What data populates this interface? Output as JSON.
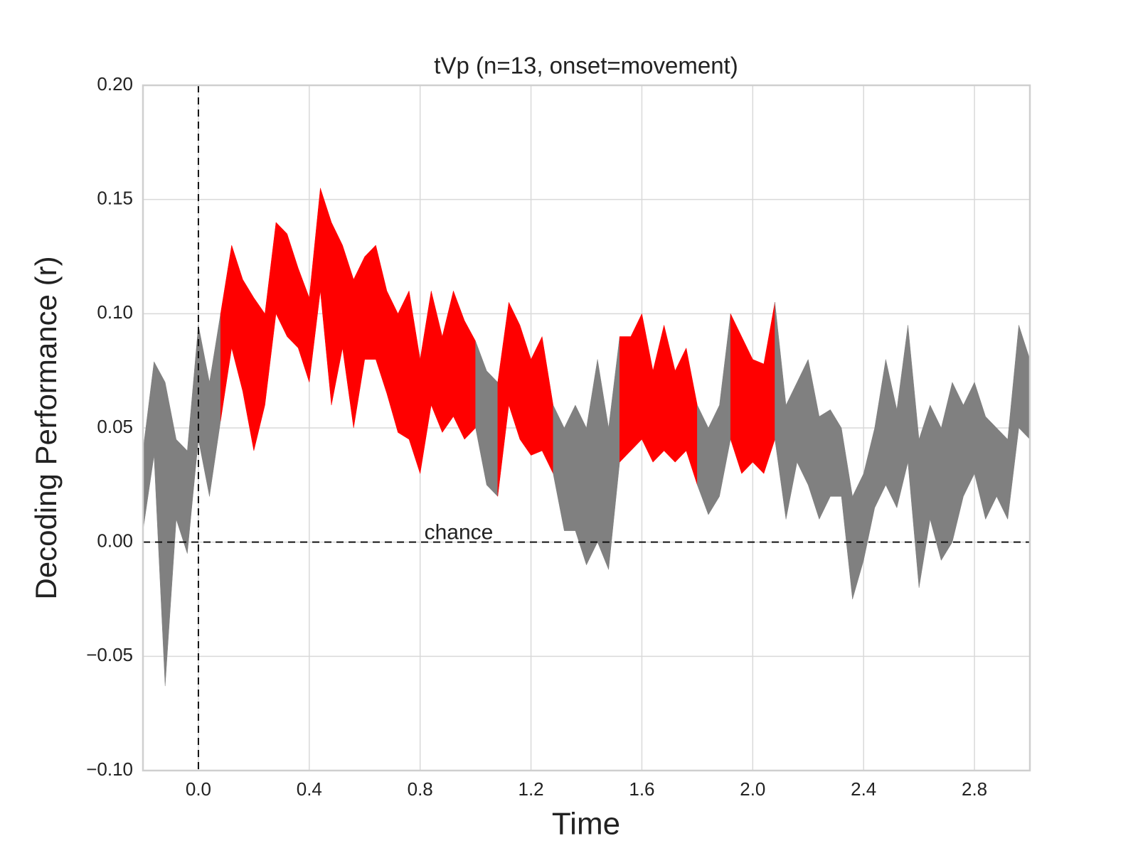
{
  "chart_data": {
    "type": "band",
    "title": "tVp (n=13, onset=movement)",
    "x_label": "Time",
    "y_label": "Decoding Performance (r)",
    "x": [
      -0.2,
      -0.16,
      -0.12,
      -0.08,
      -0.04,
      0.0,
      0.04,
      0.08,
      0.12,
      0.16,
      0.2,
      0.24,
      0.28,
      0.32,
      0.36,
      0.4,
      0.44,
      0.48,
      0.52,
      0.56,
      0.6,
      0.64,
      0.68,
      0.72,
      0.76,
      0.8,
      0.84,
      0.88,
      0.92,
      0.96,
      1.0,
      1.04,
      1.08,
      1.12,
      1.16,
      1.2,
      1.24,
      1.28,
      1.32,
      1.36,
      1.4,
      1.44,
      1.48,
      1.52,
      1.56,
      1.6,
      1.64,
      1.68,
      1.72,
      1.76,
      1.8,
      1.84,
      1.88,
      1.92,
      1.96,
      2.0,
      2.04,
      2.08,
      2.12,
      2.16,
      2.2,
      2.24,
      2.28,
      2.32,
      2.36,
      2.4,
      2.44,
      2.48,
      2.52,
      2.56,
      2.6,
      2.64,
      2.68,
      2.72,
      2.76,
      2.8,
      2.84,
      2.88,
      2.92,
      2.96,
      3.0
    ],
    "upper": [
      0.04,
      0.079,
      0.07,
      0.045,
      0.04,
      0.095,
      0.07,
      0.1,
      0.13,
      0.115,
      0.107,
      0.1,
      0.14,
      0.135,
      0.12,
      0.107,
      0.155,
      0.14,
      0.13,
      0.115,
      0.125,
      0.13,
      0.11,
      0.1,
      0.11,
      0.08,
      0.11,
      0.09,
      0.11,
      0.097,
      0.088,
      0.075,
      0.07,
      0.105,
      0.095,
      0.08,
      0.09,
      0.06,
      0.05,
      0.06,
      0.05,
      0.08,
      0.05,
      0.09,
      0.09,
      0.1,
      0.075,
      0.095,
      0.075,
      0.085,
      0.06,
      0.05,
      0.06,
      0.1,
      0.09,
      0.08,
      0.078,
      0.105,
      0.06,
      0.07,
      0.08,
      0.055,
      0.058,
      0.05,
      0.02,
      0.03,
      0.05,
      0.08,
      0.058,
      0.095,
      0.045,
      0.06,
      0.05,
      0.07,
      0.06,
      0.07,
      0.055,
      0.05,
      0.045,
      0.095,
      0.08
    ],
    "lower": [
      0.005,
      0.038,
      -0.063,
      0.01,
      -0.005,
      0.045,
      0.02,
      0.053,
      0.085,
      0.066,
      0.04,
      0.06,
      0.1,
      0.09,
      0.085,
      0.07,
      0.11,
      0.06,
      0.085,
      0.05,
      0.08,
      0.08,
      0.065,
      0.048,
      0.045,
      0.03,
      0.06,
      0.048,
      0.055,
      0.045,
      0.05,
      0.025,
      0.02,
      0.06,
      0.045,
      0.038,
      0.04,
      0.03,
      0.005,
      0.005,
      -0.01,
      0.0,
      -0.012,
      0.035,
      0.04,
      0.045,
      0.035,
      0.04,
      0.035,
      0.04,
      0.025,
      0.012,
      0.02,
      0.045,
      0.03,
      0.035,
      0.03,
      0.045,
      0.01,
      0.035,
      0.025,
      0.01,
      0.02,
      0.02,
      -0.025,
      -0.008,
      0.015,
      0.025,
      0.015,
      0.035,
      -0.02,
      0.01,
      -0.008,
      0.0,
      0.02,
      0.03,
      0.01,
      0.02,
      0.01,
      0.05,
      0.045
    ],
    "color": "#808080",
    "highlight_color": "#ff0000",
    "highlight_ranges": [
      [
        0.08,
        1.0
      ],
      [
        1.08,
        1.28
      ],
      [
        1.52,
        1.8
      ],
      [
        1.92,
        2.08
      ]
    ],
    "vline": 0,
    "hline": 0,
    "annotations": [
      {
        "text": "chance"
      }
    ],
    "xlim": [
      -0.2,
      3.0
    ],
    "ylim": [
      -0.1,
      0.2
    ],
    "xticks": [
      {
        "value": 0.0,
        "label": "0.0"
      },
      0.4,
      0.8,
      1.2,
      1.6,
      {
        "value": 2.0,
        "label": "2.0"
      },
      2.4,
      2.8
    ],
    "yticks": [
      {
        "value": -0.1,
        "label": "−0.10"
      },
      {
        "value": -0.05,
        "label": "−0.05"
      },
      {
        "value": 0.0,
        "label": "0.00"
      },
      {
        "value": 0.05,
        "label": "0.05"
      },
      {
        "value": 0.1,
        "label": "0.10"
      },
      {
        "value": 0.15,
        "label": "0.15"
      },
      {
        "value": 0.2,
        "label": "0.20"
      }
    ],
    "grid": true
  }
}
